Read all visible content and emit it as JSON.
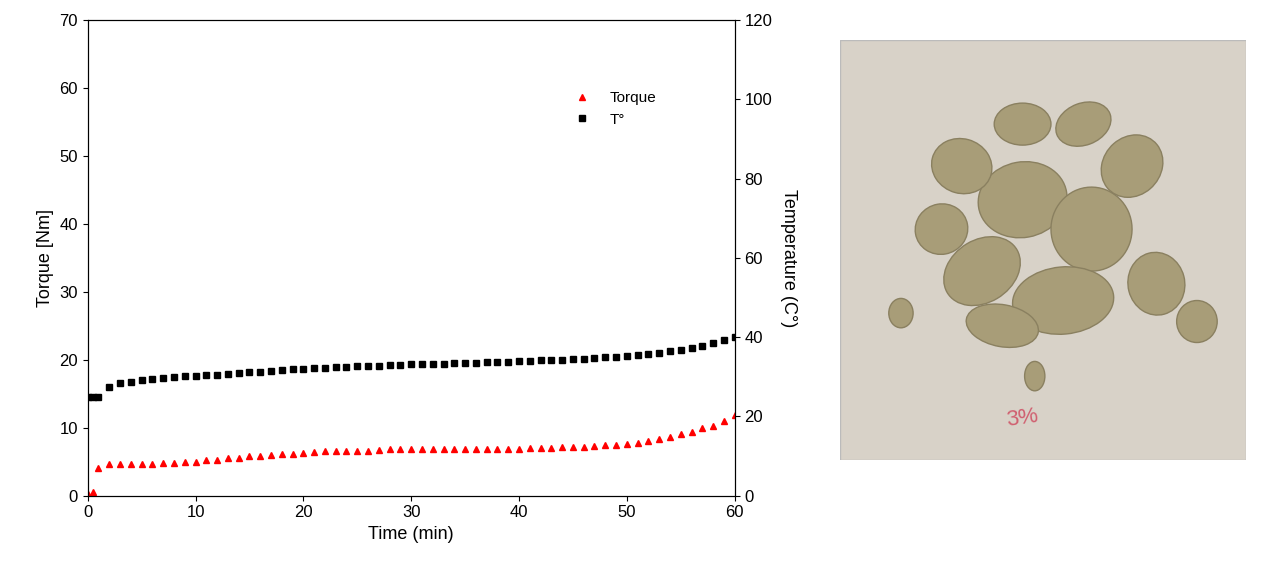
{
  "chart_data": {
    "type": "scatter",
    "x_label": "Time (min)",
    "y_label": "Torque [Nm]",
    "y2_label": "Temperature (C°)",
    "x": [
      0,
      0.5,
      1,
      2,
      3,
      4,
      5,
      6,
      7,
      8,
      9,
      10,
      11,
      12,
      13,
      14,
      15,
      16,
      17,
      18,
      19,
      20,
      21,
      22,
      23,
      24,
      25,
      26,
      27,
      28,
      29,
      30,
      31,
      32,
      33,
      34,
      35,
      36,
      37,
      38,
      39,
      40,
      41,
      42,
      43,
      44,
      45,
      46,
      47,
      48,
      49,
      50,
      51,
      52,
      53,
      54,
      55,
      56,
      57,
      58,
      59,
      60
    ],
    "series": [
      {
        "name": "Torque",
        "color": "#ff0000",
        "marker": "triangle",
        "axis": "y",
        "values": [
          0.2,
          0.5,
          4.0,
          4.6,
          4.6,
          4.6,
          4.6,
          4.6,
          4.8,
          4.8,
          4.9,
          5.0,
          5.2,
          5.3,
          5.5,
          5.6,
          5.8,
          5.9,
          6.0,
          6.1,
          6.2,
          6.3,
          6.4,
          6.5,
          6.5,
          6.6,
          6.6,
          6.6,
          6.7,
          6.8,
          6.8,
          6.9,
          6.9,
          6.8,
          6.8,
          6.8,
          6.8,
          6.9,
          6.9,
          6.9,
          6.8,
          6.9,
          7.0,
          7.0,
          7.0,
          7.1,
          7.1,
          7.2,
          7.3,
          7.4,
          7.4,
          7.6,
          7.8,
          8.0,
          8.3,
          8.6,
          9.0,
          9.4,
          9.9,
          10.3,
          11.0,
          11.8
        ]
      },
      {
        "name": "T°",
        "color": "#000000",
        "marker": "square",
        "axis": "y2",
        "values": [
          24.9,
          24.8,
          25.0,
          27.4,
          28.3,
          28.8,
          29.1,
          29.4,
          29.7,
          29.9,
          30.1,
          30.2,
          30.4,
          30.5,
          30.7,
          30.9,
          31.1,
          31.3,
          31.5,
          31.7,
          31.9,
          32.0,
          32.1,
          32.3,
          32.4,
          32.5,
          32.6,
          32.7,
          32.8,
          32.9,
          33.0,
          33.1,
          33.2,
          33.3,
          33.3,
          33.4,
          33.5,
          33.5,
          33.6,
          33.7,
          33.8,
          33.9,
          34.0,
          34.1,
          34.2,
          34.3,
          34.4,
          34.6,
          34.7,
          34.9,
          35.1,
          35.3,
          35.5,
          35.8,
          36.1,
          36.4,
          36.8,
          37.2,
          37.8,
          38.4,
          39.2,
          40.0
        ]
      }
    ],
    "xlim": [
      0,
      60
    ],
    "xticks": [
      0,
      10,
      20,
      30,
      40,
      50,
      60
    ],
    "ylim": [
      0,
      70
    ],
    "yticks": [
      0,
      10,
      20,
      30,
      40,
      50,
      60,
      70
    ],
    "y2lim": [
      0,
      120
    ],
    "y2ticks": [
      0,
      20,
      40,
      60,
      80,
      100,
      120
    ],
    "legend": "upper right",
    "grid": false,
    "annotations": [
      "3%"
    ]
  }
}
